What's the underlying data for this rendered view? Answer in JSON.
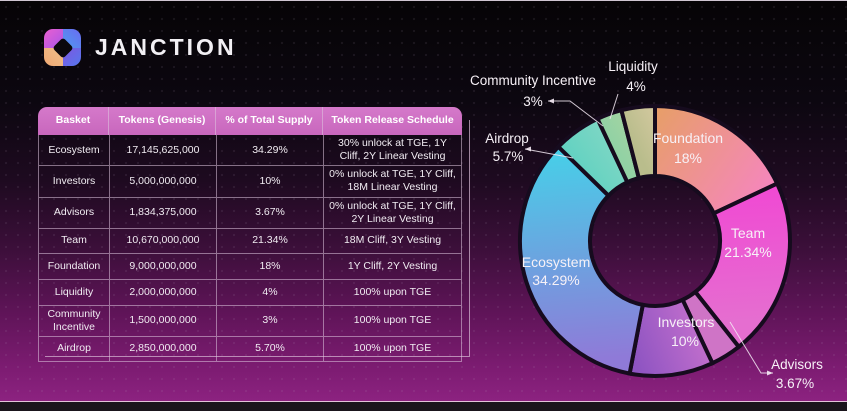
{
  "brand": {
    "title": "JANCTION",
    "logo_icon": "janction-four-square-logo"
  },
  "table": {
    "columns": [
      "Basket",
      "Tokens (Genesis)",
      "% of Total Supply",
      "Token Release Schedule"
    ],
    "rows": [
      {
        "basket": "Ecosystem",
        "tokens": "17,145,625,000",
        "pct": "34.29%",
        "schedule": "30% unlock at TGE, 1Y Cliff, 2Y Linear Vesting"
      },
      {
        "basket": "Investors",
        "tokens": "5,000,000,000",
        "pct": "10%",
        "schedule": "0% unlock at TGE, 1Y Cliff, 18M Linear Vesting"
      },
      {
        "basket": "Advisors",
        "tokens": "1,834,375,000",
        "pct": "3.67%",
        "schedule": "0% unlock at TGE, 1Y Cliff, 2Y Linear Vesting"
      },
      {
        "basket": "Team",
        "tokens": "10,670,000,000",
        "pct": "21.34%",
        "schedule": "18M Cliff, 3Y Vesting"
      },
      {
        "basket": "Foundation",
        "tokens": "9,000,000,000",
        "pct": "18%",
        "schedule": "1Y Cliff, 2Y Vesting"
      },
      {
        "basket": "Liquidity",
        "tokens": "2,000,000,000",
        "pct": "4%",
        "schedule": "100% upon TGE"
      },
      {
        "basket": "Community Incentive",
        "tokens": "1,500,000,000",
        "pct": "3%",
        "schedule": "100% upon TGE"
      },
      {
        "basket": "Airdrop",
        "tokens": "2,850,000,000",
        "pct": "5.70%",
        "schedule": "100% upon TGE"
      }
    ]
  },
  "chart_data": {
    "type": "pie",
    "subtype": "donut",
    "title": "",
    "start_angle_deg": 0,
    "direction": "clockwise",
    "legend_position": "none",
    "slices": [
      {
        "label": "Foundation",
        "value": 18,
        "display": "18%",
        "placement": "inside",
        "colors": [
          "#e79e68",
          "#f783c8"
        ]
      },
      {
        "label": "Team",
        "value": 21.34,
        "display": "21.34%",
        "placement": "inside",
        "colors": [
          "#f33fd4",
          "#e56ed0"
        ]
      },
      {
        "label": "Advisors",
        "value": 3.67,
        "display": "3.67%",
        "placement": "outside",
        "colors": [
          "#cf74c6",
          "#d77fca"
        ]
      },
      {
        "label": "Investors",
        "value": 10,
        "display": "10%",
        "placement": "inside",
        "colors": [
          "#8e54c2",
          "#d478d0"
        ]
      },
      {
        "label": "Ecosystem",
        "value": 34.29,
        "display": "34.29%",
        "placement": "inside",
        "colors": [
          "#3ed9ea",
          "#8f7ad8"
        ]
      },
      {
        "label": "Airdrop",
        "value": 5.7,
        "display": "5.7%",
        "placement": "outside",
        "colors": [
          "#58d0c0",
          "#7cd6c4"
        ]
      },
      {
        "label": "Community Incentive",
        "value": 3,
        "display": "3%",
        "placement": "outside",
        "colors": [
          "#92d2a4",
          "#a6d4a2"
        ]
      },
      {
        "label": "Liquidity",
        "value": 4,
        "display": "4%",
        "placement": "outside",
        "colors": [
          "#b9bd8c",
          "#d2c89e"
        ]
      }
    ]
  },
  "colors": {
    "table_header_bg": "#d173c7",
    "table_line": "#dfc7df",
    "background_top": "#060406",
    "background_bottom": "#8c2280",
    "slice_outline": "#160b1e",
    "text": "#f1ecf2"
  }
}
